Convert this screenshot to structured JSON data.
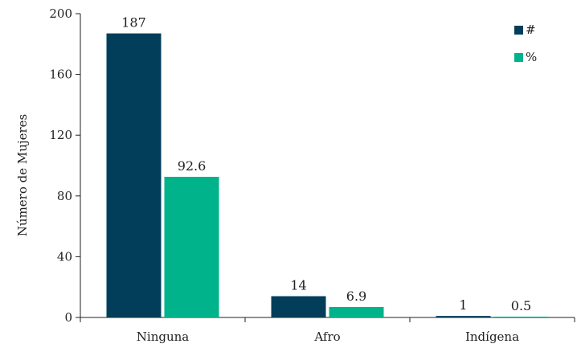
{
  "chart_data": {
    "type": "bar",
    "title": "",
    "xlabel": "",
    "ylabel": "Número de Mujeres",
    "ylim": [
      0,
      200
    ],
    "yticks": [
      0,
      40,
      80,
      120,
      160,
      200
    ],
    "categories": [
      "Ninguna",
      "Afro",
      "Indígena"
    ],
    "series": [
      {
        "name": "#",
        "values": [
          187,
          14,
          1
        ],
        "labels": [
          "187",
          "14",
          "1"
        ],
        "color": "#023e5a"
      },
      {
        "name": "%",
        "values": [
          92.6,
          6.9,
          0.5
        ],
        "labels": [
          "92.6",
          "6.9",
          "0.5"
        ],
        "color": "#00b38a"
      }
    ],
    "legend": "top-right",
    "grid": false
  }
}
